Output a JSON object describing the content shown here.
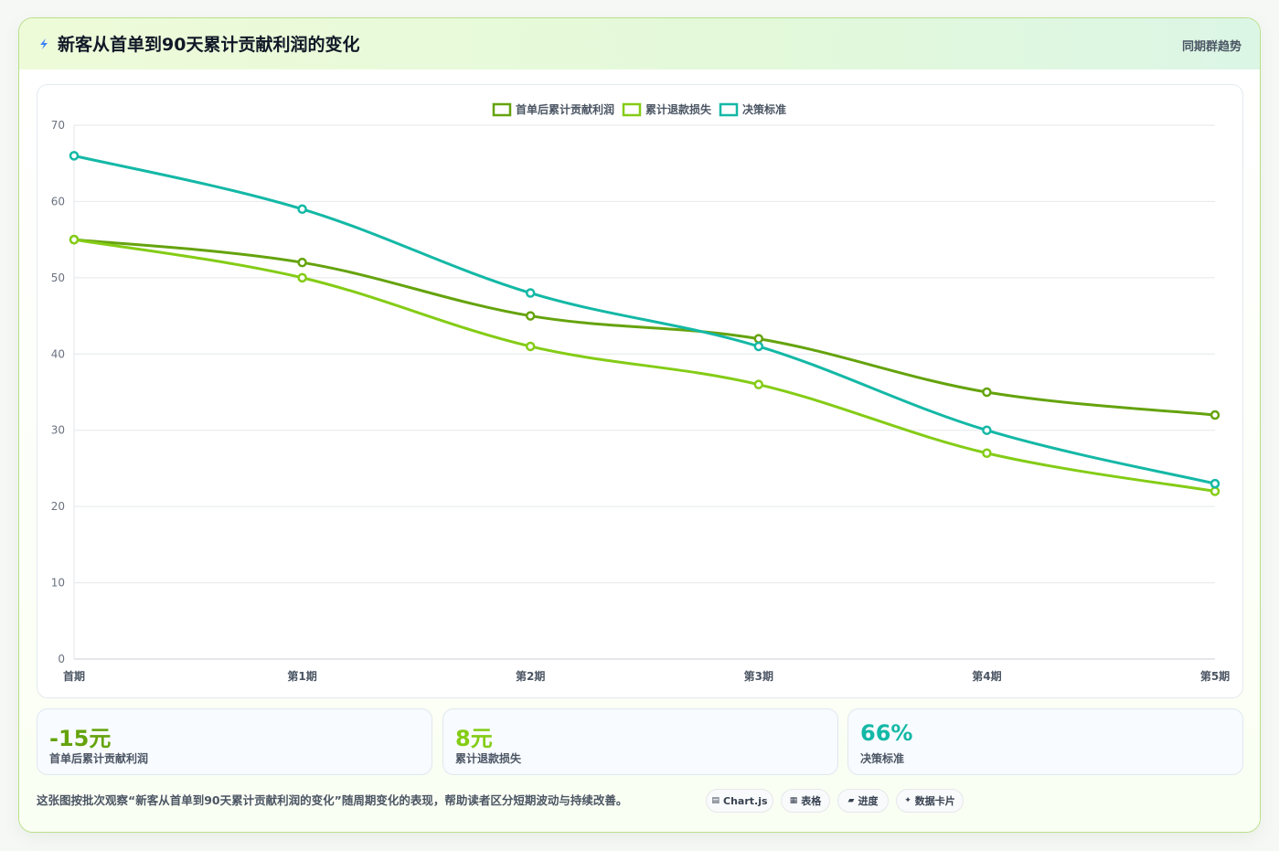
{
  "header": {
    "title": "新客从首单到90天累计贡献利润的变化",
    "tag": "同期群趋势"
  },
  "colors": {
    "series1": "#65a30d",
    "series2": "#84cc16",
    "series3": "#14b8a6"
  },
  "chart_data": {
    "type": "line",
    "categories": [
      "首期",
      "第1期",
      "第2期",
      "第3期",
      "第4期",
      "第5期"
    ],
    "series": [
      {
        "name": "首单后累计贡献利润",
        "values": [
          55,
          52,
          45,
          42,
          35,
          32
        ]
      },
      {
        "name": "累计退款损失",
        "values": [
          55,
          50,
          41,
          36,
          27,
          22
        ]
      },
      {
        "name": "决策标准",
        "values": [
          66,
          59,
          48,
          41,
          30,
          23
        ]
      }
    ],
    "ylim": [
      0,
      70
    ],
    "yticks": [
      0,
      10,
      20,
      30,
      40,
      50,
      60,
      70
    ],
    "grid": true,
    "legend": "top-center"
  },
  "stats": [
    {
      "value": "-15元",
      "label": "首单后累计贡献利润"
    },
    {
      "value": "8元",
      "label": "累计退款损失"
    },
    {
      "value": "66%",
      "label": "决策标准"
    }
  ],
  "footnote": "这张图按批次观察“新客从首单到90天累计贡献利润的变化”随周期变化的表现，帮助读者区分短期波动与持续改善。",
  "pills": [
    {
      "icon": "chart-icon",
      "glyph": "▤",
      "label": "Chart.js"
    },
    {
      "icon": "table-icon",
      "glyph": "▦",
      "label": "表格"
    },
    {
      "icon": "progress-icon",
      "glyph": "▰",
      "label": "进度"
    },
    {
      "icon": "sparkle-icon",
      "glyph": "✦",
      "label": "数据卡片"
    }
  ]
}
